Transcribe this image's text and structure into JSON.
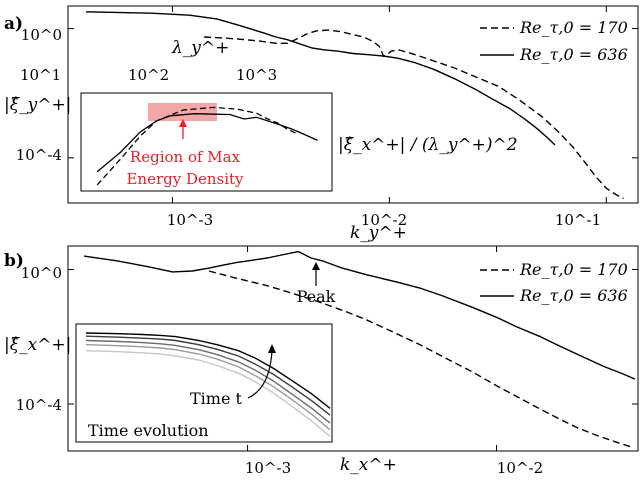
{
  "chart_data": [
    {
      "panel": "a)",
      "type": "line",
      "xscale": "log",
      "yscale": "log",
      "xlim": [
        0.00033,
        0.14
      ],
      "ylim": [
        4e-06,
        5
      ],
      "xlabel": "k_y^+",
      "ylabel": "|ξ̂_y^+|",
      "x_ticks": [
        0.001,
        0.01,
        0.1
      ],
      "x_tick_labels": [
        "10^-3",
        "10^-2",
        "10^-1"
      ],
      "y_ticks": [
        1,
        0.0001
      ],
      "y_tick_labels": [
        "10^0",
        "10^-4"
      ],
      "top_axis": {
        "label": "λ_y^+",
        "ticks": [
          10,
          100,
          1000
        ],
        "tick_labels": [
          "10^1",
          "10^2",
          "10^3"
        ]
      },
      "legend": {
        "position": "top-right",
        "entries": [
          "Re_τ,0 = 170",
          "Re_τ,0 = 636"
        ]
      },
      "series": [
        {
          "name": "Re_τ,0 = 170",
          "style": "dashed",
          "x": [
            0.0014,
            0.0018,
            0.0022,
            0.0026,
            0.003,
            0.0034,
            0.0038,
            0.0042,
            0.0046,
            0.0052,
            0.006,
            0.0068,
            0.0076,
            0.0084,
            0.009,
            0.0094,
            0.0098,
            0.0102,
            0.011,
            0.013,
            0.016,
            0.02,
            0.025,
            0.032,
            0.04,
            0.05,
            0.06,
            0.07,
            0.08,
            0.09,
            0.1,
            0.11,
            0.12
          ],
          "y": [
            0.55,
            0.5,
            0.45,
            0.4,
            0.35,
            0.35,
            0.5,
            0.7,
            0.85,
            0.9,
            0.8,
            0.65,
            0.55,
            0.4,
            0.28,
            0.14,
            0.16,
            0.2,
            0.22,
            0.16,
            0.1,
            0.06,
            0.032,
            0.016,
            0.006,
            0.002,
            0.00065,
            0.00022,
            7e-05,
            2.5e-05,
            1.15e-05,
            7.5e-06,
            5.5e-06
          ]
        },
        {
          "name": "Re_τ,0 = 636",
          "style": "solid",
          "x": [
            0.0004,
            0.0008,
            0.0012,
            0.0016,
            0.002,
            0.0026,
            0.003,
            0.0034,
            0.0038,
            0.0044,
            0.005,
            0.0058,
            0.0068,
            0.008,
            0.0095,
            0.011,
            0.013,
            0.016,
            0.02,
            0.025,
            0.03,
            0.036,
            0.042,
            0.048,
            0.054,
            0.058
          ],
          "y": [
            3.3,
            3.0,
            2.6,
            2.0,
            1.3,
            0.75,
            0.55,
            0.45,
            0.35,
            0.25,
            0.22,
            0.2,
            0.17,
            0.155,
            0.14,
            0.12,
            0.09,
            0.055,
            0.028,
            0.013,
            0.0065,
            0.0033,
            0.0016,
            0.0008,
            0.0004,
            0.00025
          ]
        }
      ],
      "inset": {
        "ylabel": "|ξ̂_x^+| / (λ_y^+)^2",
        "annotation": "Region of Max Energy Density",
        "highlight_color": "#f4a7a7",
        "annotation_color": "#e8202a",
        "series": [
          {
            "name": "Re_τ,0 = 170",
            "style": "dashed",
            "x": [
              0.0004,
              0.0005,
              0.0006,
              0.0007,
              0.0009,
              0.0012,
              0.0015,
              0.0018,
              0.002,
              0.0022,
              0.0024,
              0.0026
            ],
            "y": [
              4e-05,
              0.00025,
              0.0012,
              0.0035,
              0.0075,
              0.009,
              0.008,
              0.006,
              0.004,
              0.003,
              0.002,
              0.0015
            ]
          },
          {
            "name": "Re_τ,0 = 636",
            "style": "solid",
            "x": [
              0.0004,
              0.0005,
              0.0006,
              0.0007,
              0.0008,
              0.001,
              0.0012,
              0.0014,
              0.0016,
              0.0018,
              0.002,
              0.0022,
              0.0025,
              0.0028,
              0.0032
            ],
            "y": [
              0.0001,
              0.0004,
              0.0016,
              0.0035,
              0.005,
              0.0058,
              0.0056,
              0.0055,
              0.004,
              0.0045,
              0.0035,
              0.0028,
              0.002,
              0.0014,
              0.0009
            ]
          }
        ]
      }
    },
    {
      "panel": "b)",
      "type": "line",
      "xscale": "log",
      "yscale": "log",
      "xlim": [
        0.00019,
        0.037
      ],
      "ylim": [
        4e-06,
        5
      ],
      "xlabel": "k_x^+",
      "ylabel": "|ξ̂_x^+|",
      "x_ticks": [
        0.001,
        0.01
      ],
      "x_tick_labels": [
        "10^-3",
        "10^-2"
      ],
      "y_ticks": [
        1,
        0.0001
      ],
      "y_tick_labels": [
        "10^0",
        "10^-4"
      ],
      "legend": {
        "position": "top-right",
        "entries": [
          "Re_τ,0 = 170",
          "Re_τ,0 = 636"
        ]
      },
      "annotations": [
        "Peak",
        "Time t",
        "Time evolution"
      ],
      "series": [
        {
          "name": "Re_τ,0 = 170",
          "style": "dashed",
          "x": [
            0.0007,
            0.0009,
            0.0012,
            0.0015,
            0.002,
            0.0025,
            0.003,
            0.004,
            0.005,
            0.006,
            0.008,
            0.01,
            0.012,
            0.015,
            0.018,
            0.021,
            0.025,
            0.03,
            0.035
          ],
          "y": [
            0.9,
            0.55,
            0.33,
            0.2,
            0.1,
            0.055,
            0.032,
            0.012,
            0.0055,
            0.0027,
            0.0009,
            0.00035,
            0.00017,
            7e-05,
            3.5e-05,
            2e-05,
            1.2e-05,
            7.5e-06,
            5.2e-06
          ]
        },
        {
          "name": "Re_τ,0 = 636",
          "style": "solid",
          "x": [
            0.00022,
            0.0003,
            0.0004,
            0.0005,
            0.0006,
            0.0007,
            0.0008,
            0.0009,
            0.001,
            0.0012,
            0.0014,
            0.0016,
            0.0018,
            0.002,
            0.0024,
            0.003,
            0.004,
            0.005,
            0.006,
            0.008,
            0.01,
            0.012,
            0.015,
            0.018,
            0.022,
            0.027,
            0.032,
            0.036
          ],
          "y": [
            2.5,
            1.8,
            1.2,
            0.85,
            0.9,
            1.1,
            1.35,
            1.6,
            1.8,
            2.2,
            2.8,
            3.4,
            2.2,
            1.8,
            1.1,
            0.7,
            0.42,
            0.27,
            0.17,
            0.075,
            0.038,
            0.02,
            0.01,
            0.0052,
            0.0026,
            0.0013,
            0.0008,
            0.00055
          ]
        }
      ],
      "inset": {
        "series_colors": [
          "#000000",
          "#3c3c3c",
          "#6c6c6c",
          "#9a9a9a",
          "#c8c8c8"
        ],
        "x": [
          0.0002,
          0.0003,
          0.0004,
          0.0005,
          0.0006,
          0.0008,
          0.001,
          0.0013,
          0.0016,
          0.002,
          0.0025,
          0.0032,
          0.004
        ],
        "series": [
          {
            "y": [
              1.0,
              0.95,
              0.9,
              0.85,
              0.78,
              0.6,
              0.45,
              0.3,
              0.18,
              0.09,
              0.04,
              0.016,
              0.006
            ]
          },
          {
            "y": [
              0.8,
              0.75,
              0.7,
              0.66,
              0.6,
              0.45,
              0.33,
              0.21,
              0.12,
              0.06,
              0.026,
              0.01,
              0.0038
            ]
          },
          {
            "y": [
              0.6,
              0.56,
              0.52,
              0.48,
              0.43,
              0.32,
              0.23,
              0.14,
              0.08,
              0.038,
              0.016,
              0.006,
              0.0022
            ]
          },
          {
            "y": [
              0.45,
              0.42,
              0.39,
              0.36,
              0.32,
              0.24,
              0.17,
              0.1,
              0.055,
              0.026,
              0.011,
              0.004,
              0.0014
            ]
          },
          {
            "y": [
              0.3,
              0.28,
              0.26,
              0.24,
              0.21,
              0.16,
              0.11,
              0.065,
              0.036,
              0.017,
              0.007,
              0.0025,
              0.0009
            ]
          }
        ]
      }
    }
  ]
}
